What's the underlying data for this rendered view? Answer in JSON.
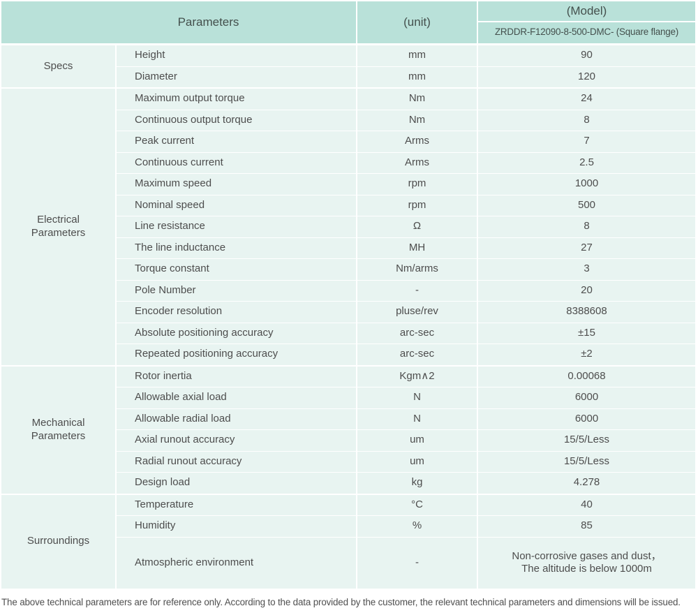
{
  "colors": {
    "header_bg": "#b9e1d9",
    "cell_bg": "#e8f4f1",
    "header_text": "#44504d",
    "body_text": "#4d4d4d"
  },
  "header": {
    "parameters": "Parameters",
    "unit": "(unit)",
    "model": "(Model)",
    "model_name": "ZRDDR-F12090-8-500-DMC- (Square flange)"
  },
  "table": {
    "sections": [
      {
        "group": "Specs",
        "rows": [
          {
            "param": "Height",
            "unit": "mm",
            "value": "90"
          },
          {
            "param": "Diameter",
            "unit": "mm",
            "value": "120"
          }
        ]
      },
      {
        "group": "Electrical\nParameters",
        "rows": [
          {
            "param": "Maximum output torque",
            "unit": "Nm",
            "value": "24"
          },
          {
            "param": "Continuous output torque",
            "unit": "Nm",
            "value": "8"
          },
          {
            "param": "Peak current",
            "unit": "Arms",
            "value": "7"
          },
          {
            "param": "Continuous current",
            "unit": "Arms",
            "value": "2.5"
          },
          {
            "param": "Maximum speed",
            "unit": "rpm",
            "value": "1000"
          },
          {
            "param": "Nominal speed",
            "unit": "rpm",
            "value": "500"
          },
          {
            "param": "Line resistance",
            "unit": "Ω",
            "value": "8"
          },
          {
            "param": "The line inductance",
            "unit": "MH",
            "value": "27"
          },
          {
            "param": "Torque constant",
            "unit": "Nm/arms",
            "value": "3"
          },
          {
            "param": "Pole Number",
            "unit": "-",
            "value": "20"
          },
          {
            "param": "Encoder resolution",
            "unit": "pluse/rev",
            "value": "8388608"
          },
          {
            "param": "Absolute positioning accuracy",
            "unit": "arc-sec",
            "value": "±15"
          },
          {
            "param": "Repeated positioning accuracy",
            "unit": "arc-sec",
            "value": "±2"
          }
        ]
      },
      {
        "group": "Mechanical\nParameters",
        "rows": [
          {
            "param": "Rotor inertia",
            "unit": "Kgm∧2",
            "value": "0.00068"
          },
          {
            "param": "Allowable axial load",
            "unit": "N",
            "value": "6000"
          },
          {
            "param": "Allowable radial load",
            "unit": "N",
            "value": "6000"
          },
          {
            "param": "Axial runout accuracy",
            "unit": "um",
            "value": "15/5/Less"
          },
          {
            "param": "Radial runout accuracy",
            "unit": "um",
            "value": "15/5/Less"
          },
          {
            "param": "Design load",
            "unit": "kg",
            "value": "4.278"
          }
        ]
      },
      {
        "group": "Surroundings",
        "rows": [
          {
            "param": "Temperature",
            "unit": "°C",
            "value": "40"
          },
          {
            "param": "Humidity",
            "unit": "%",
            "value": "85"
          },
          {
            "param": "Atmospheric environment",
            "unit": "-",
            "value": "Non-corrosive gases and dust，\nThe altitude is below 1000m"
          }
        ]
      }
    ]
  },
  "footer": {
    "note": "The above technical parameters are for reference only. According to the data provided by the customer, the relevant technical parameters and dimensions will be issued."
  }
}
